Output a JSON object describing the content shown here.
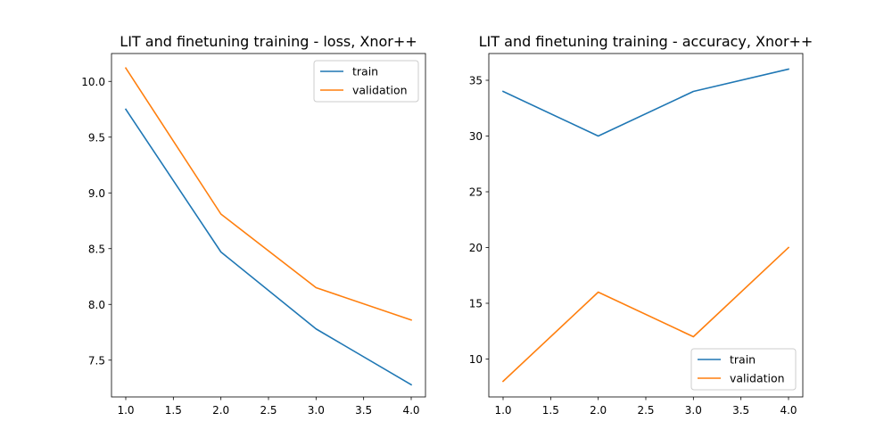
{
  "chart_data": [
    {
      "type": "line",
      "title": "LIT and finetuning training - loss, Xnor++",
      "xlabel": "",
      "ylabel": "",
      "x": [
        1.0,
        2.0,
        3.0,
        4.0
      ],
      "xlim": [
        0.85,
        4.15
      ],
      "ylim": [
        7.17,
        10.25
      ],
      "xticks": [
        1.0,
        1.5,
        2.0,
        2.5,
        3.0,
        3.5,
        4.0
      ],
      "xtick_labels": [
        "1.0",
        "1.5",
        "2.0",
        "2.5",
        "3.0",
        "3.5",
        "4.0"
      ],
      "yticks": [
        7.5,
        8.0,
        8.5,
        9.0,
        9.5,
        10.0
      ],
      "ytick_labels": [
        "7.5",
        "8.0",
        "8.5",
        "9.0",
        "9.5",
        "10.0"
      ],
      "legend_position": "top-right",
      "series": [
        {
          "name": "train",
          "color": "#1f77b4",
          "values": [
            9.75,
            8.47,
            7.78,
            7.28
          ]
        },
        {
          "name": "validation",
          "color": "#ff7f0e",
          "values": [
            10.12,
            8.81,
            8.15,
            7.86
          ]
        }
      ]
    },
    {
      "type": "line",
      "title": "LIT and finetuning training - accuracy, Xnor++",
      "xlabel": "",
      "ylabel": "",
      "x": [
        1.0,
        2.0,
        3.0,
        4.0
      ],
      "xlim": [
        0.85,
        4.15
      ],
      "ylim": [
        6.6,
        37.4
      ],
      "xticks": [
        1.0,
        1.5,
        2.0,
        2.5,
        3.0,
        3.5,
        4.0
      ],
      "xtick_labels": [
        "1.0",
        "1.5",
        "2.0",
        "2.5",
        "3.0",
        "3.5",
        "4.0"
      ],
      "yticks": [
        10,
        15,
        20,
        25,
        30,
        35
      ],
      "ytick_labels": [
        "10",
        "15",
        "20",
        "25",
        "30",
        "35"
      ],
      "legend_position": "bottom-right",
      "series": [
        {
          "name": "train",
          "color": "#1f77b4",
          "values": [
            34,
            30,
            34,
            36
          ]
        },
        {
          "name": "validation",
          "color": "#ff7f0e",
          "values": [
            8,
            16,
            12,
            20
          ]
        }
      ]
    }
  ]
}
